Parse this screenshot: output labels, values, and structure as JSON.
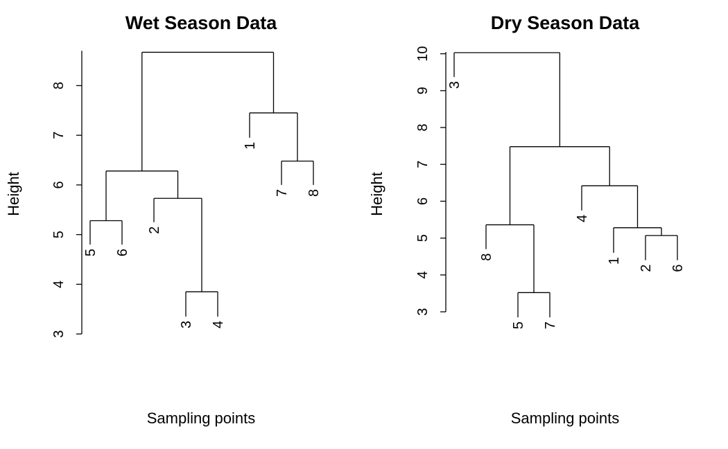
{
  "chart_data": [
    {
      "type": "dendrogram",
      "title": "Wet Season Data",
      "xlabel": "Sampling points",
      "ylabel": "Height",
      "yticks": [
        3,
        4,
        5,
        6,
        7,
        8
      ],
      "ylim": [
        3,
        8.7
      ],
      "leaf_order": [
        "5",
        "6",
        "2",
        "3",
        "4",
        "1",
        "7",
        "8"
      ],
      "leaf_tip_heights": [
        4.8,
        4.8,
        5.25,
        3.35,
        3.35,
        6.95,
        6.0,
        6.0
      ],
      "merges": [
        {
          "members": [
            "3",
            "4"
          ],
          "height": 3.85
        },
        {
          "members": [
            "5",
            "6"
          ],
          "height": 5.28
        },
        {
          "members": [
            "2",
            "3",
            "4"
          ],
          "height": 5.73
        },
        {
          "members": [
            "7",
            "8"
          ],
          "height": 6.48
        },
        {
          "members": [
            "5",
            "6",
            "2",
            "3",
            "4"
          ],
          "height": 6.28
        },
        {
          "members": [
            "1",
            "7",
            "8"
          ],
          "height": 7.45
        },
        {
          "members": [
            "5",
            "6",
            "2",
            "3",
            "4",
            "1",
            "7",
            "8"
          ],
          "height": 8.67
        }
      ]
    },
    {
      "type": "dendrogram",
      "title": "Dry Season Data",
      "xlabel": "Sampling points",
      "ylabel": "Height",
      "yticks": [
        3,
        4,
        5,
        6,
        7,
        8,
        9,
        10
      ],
      "ylim": [
        3,
        10.05
      ],
      "leaf_order": [
        "3",
        "8",
        "5",
        "7",
        "4",
        "1",
        "2",
        "6"
      ],
      "leaf_tip_heights": [
        9.37,
        4.7,
        2.85,
        2.85,
        5.75,
        4.6,
        4.4,
        4.4
      ],
      "merges": [
        {
          "members": [
            "5",
            "7"
          ],
          "height": 3.52
        },
        {
          "members": [
            "2",
            "6"
          ],
          "height": 5.07
        },
        {
          "members": [
            "1",
            "2",
            "6"
          ],
          "height": 5.28
        },
        {
          "members": [
            "8",
            "5",
            "7"
          ],
          "height": 5.36
        },
        {
          "members": [
            "4",
            "1",
            "2",
            "6"
          ],
          "height": 6.42
        },
        {
          "members": [
            "8",
            "5",
            "7",
            "4",
            "1",
            "2",
            "6"
          ],
          "height": 7.48
        },
        {
          "members": [
            "3",
            "8",
            "5",
            "7",
            "4",
            "1",
            "2",
            "6"
          ],
          "height": 10.03
        }
      ]
    }
  ]
}
